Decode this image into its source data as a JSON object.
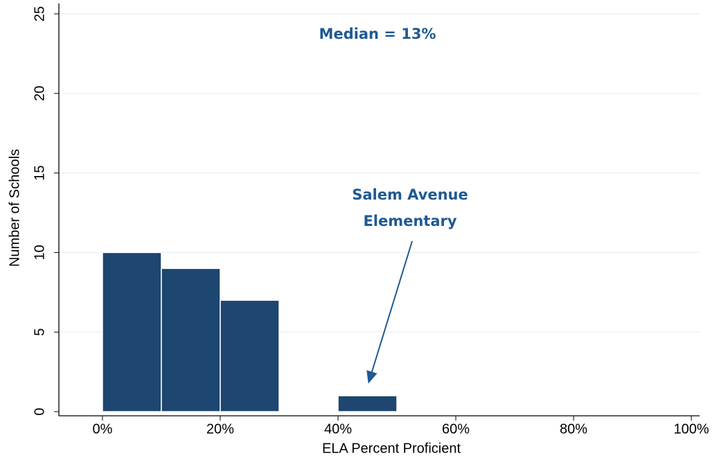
{
  "chart_data": {
    "type": "histogram",
    "x_label": "ELA Percent Proficient",
    "y_label": "Number of Schools",
    "bins": [
      0,
      10,
      20,
      30,
      40,
      50
    ],
    "values": [
      10,
      9,
      7,
      0,
      1
    ],
    "color": "#1d4670",
    "xlim": [
      -7.4,
      101.4
    ],
    "ylim": [
      0,
      25
    ],
    "xticks": [
      {
        "value": 0,
        "label": "0%"
      },
      {
        "value": 20,
        "label": "20%"
      },
      {
        "value": 40,
        "label": "40%"
      },
      {
        "value": 60,
        "label": "60%"
      },
      {
        "value": 80,
        "label": "80%"
      },
      {
        "value": 100,
        "label": "100%"
      }
    ],
    "yticks": [
      0,
      5,
      10,
      15,
      20,
      25
    ],
    "grid": true,
    "annotations": [
      {
        "lines": [
          "Median = 13%"
        ],
        "color": "#1f5a92"
      },
      {
        "lines": [
          "Salem Avenue",
          "Elementary"
        ],
        "color": "#1f5a92"
      }
    ]
  }
}
